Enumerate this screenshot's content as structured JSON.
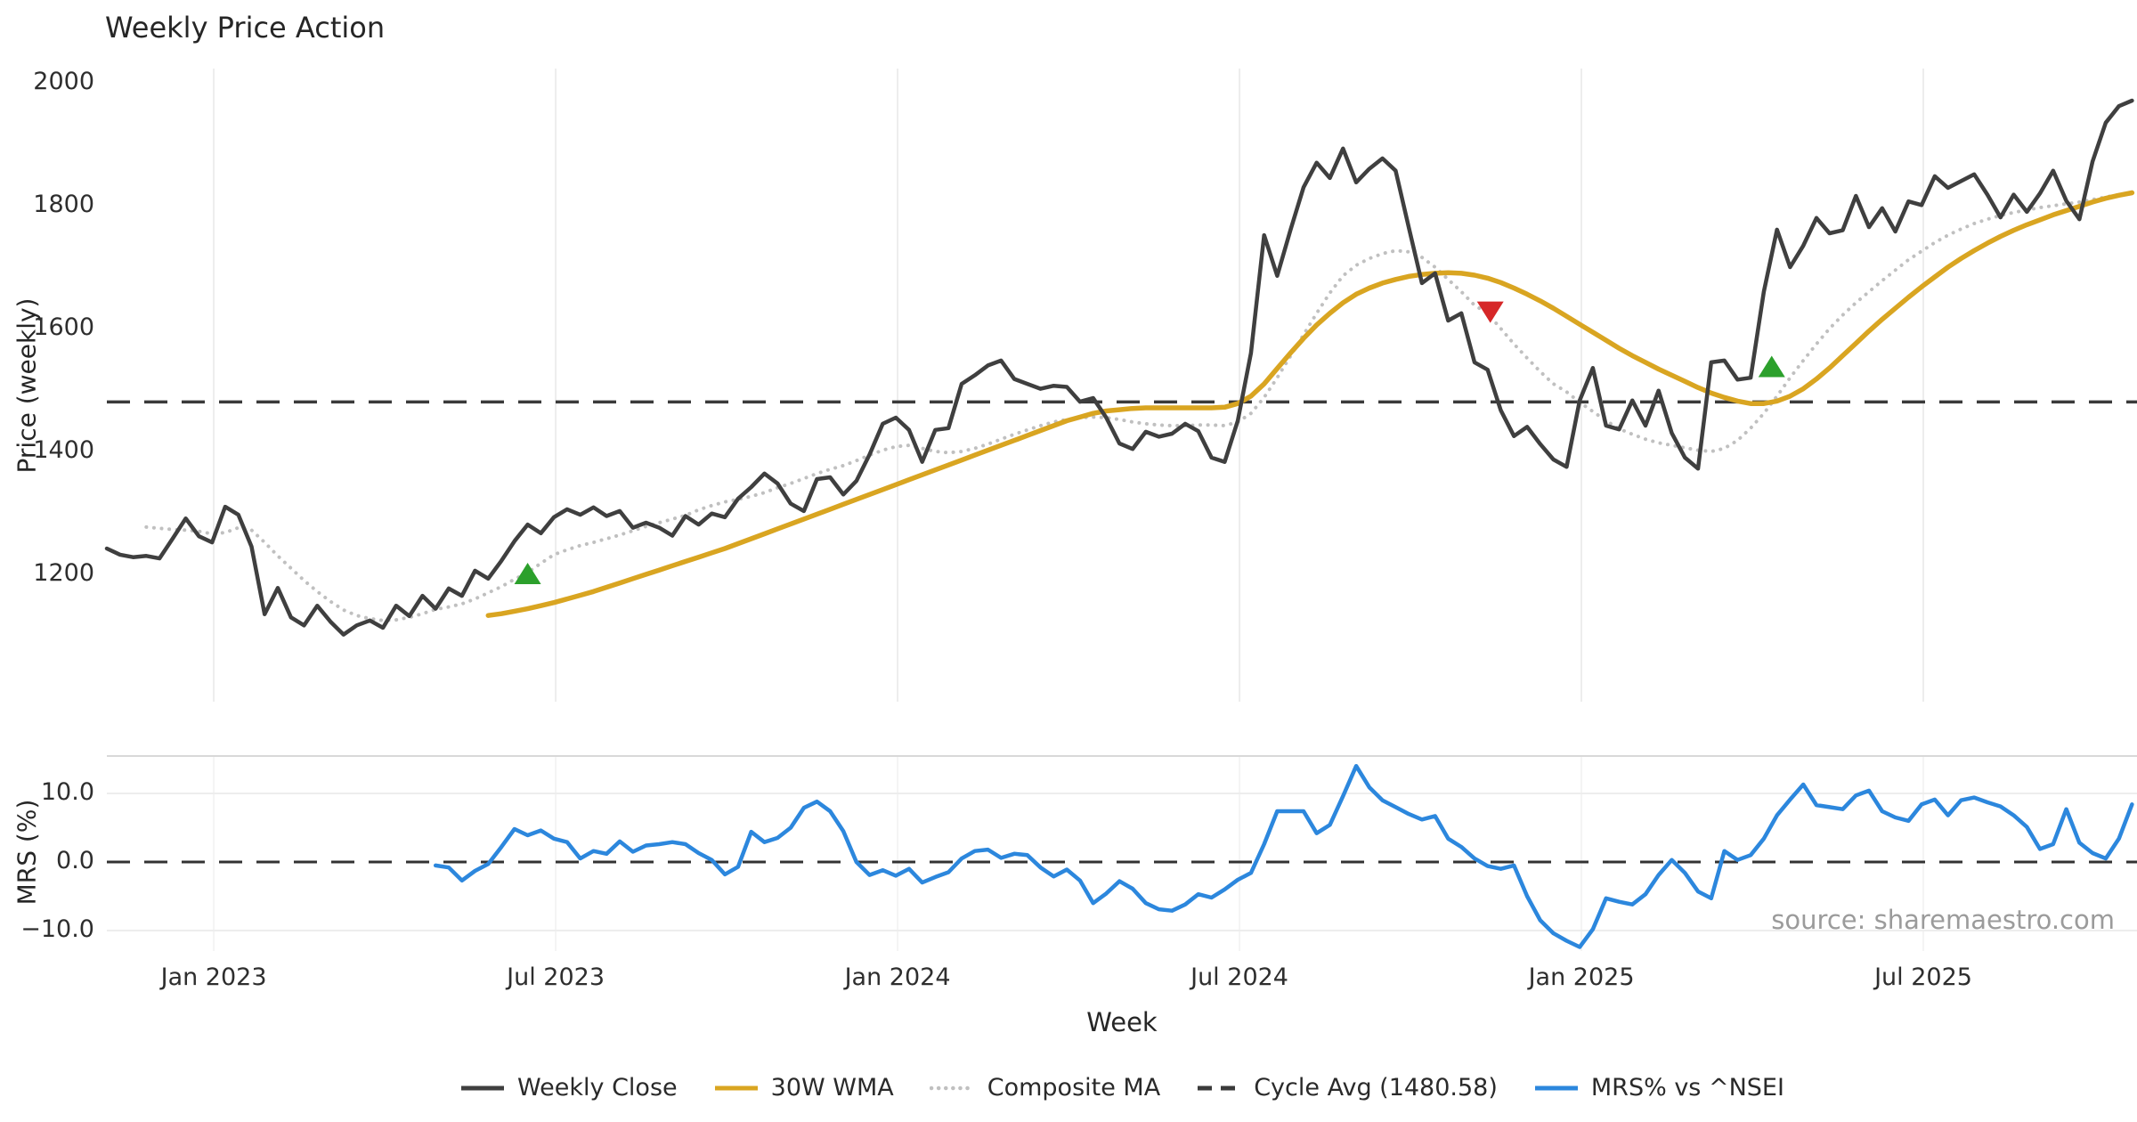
{
  "title": "Weekly Price Action",
  "source": "source: sharemaestro.com",
  "colors": {
    "weekly_close": "#3f3f3f",
    "wma_30w": "#d9a521",
    "composite_ma": "#c0c0c0",
    "cycle_avg": "#3a3a3a",
    "mrs_line": "#2c87dd",
    "buy_marker": "#2ca02c",
    "sell_marker": "#d62728",
    "gridline": "#ededed",
    "panel_spine": "#d8d8d8",
    "tick_text": "#2e2e2e",
    "source_text": "#9b9b9b"
  },
  "x_axis": {
    "label": "Week",
    "ticks": [
      {
        "label": "Jan 2023",
        "week": 8.13
      },
      {
        "label": "Jul 2023",
        "week": 34.13
      },
      {
        "label": "Jan 2024",
        "week": 60.13
      },
      {
        "label": "Jul 2024",
        "week": 86.13
      },
      {
        "label": "Jan 2025",
        "week": 112.13
      },
      {
        "label": "Jul 2025",
        "week": 138.13
      }
    ]
  },
  "price_panel": {
    "y_axis_label": "Price (weekly)",
    "y_ticks": [
      {
        "label": "2000",
        "value": 2000
      },
      {
        "label": "1800",
        "value": 1800
      },
      {
        "label": "1600",
        "value": 1600
      },
      {
        "label": "1400",
        "value": 1400
      },
      {
        "label": "1200",
        "value": 1200
      }
    ]
  },
  "mrs_panel": {
    "y_axis_label": "MRS (%)",
    "y_ticks": [
      {
        "label": "10.0",
        "value": 10
      },
      {
        "label": "0.0",
        "value": 0
      },
      {
        "label": "−10.0",
        "value": -10
      }
    ]
  },
  "legend": {
    "items": [
      {
        "key": "weekly-close",
        "label": "Weekly Close",
        "color": "#3f3f3f",
        "style": "solid"
      },
      {
        "key": "wma-30w",
        "label": "30W WMA",
        "color": "#d9a521",
        "style": "solid"
      },
      {
        "key": "composite-ma",
        "label": "Composite MA",
        "color": "#c0c0c0",
        "style": "dotted"
      },
      {
        "key": "cycle-avg",
        "label": "Cycle Avg (1480.58)",
        "color": "#3a3a3a",
        "style": "dashed"
      },
      {
        "key": "mrs-nsei",
        "label": "MRS% vs ^NSEI",
        "color": "#2c87dd",
        "style": "solid"
      }
    ]
  },
  "chart_data": [
    {
      "type": "line",
      "panel": "price",
      "title": "Weekly Price Action",
      "xlabel": "Week",
      "ylabel": "Price (weekly)",
      "ylim": [
        990,
        2025
      ],
      "x_range_weeks": [
        0,
        154
      ],
      "x_span_dates": [
        "Nov 2022",
        "Oct 2025"
      ],
      "grid": "vertical-only",
      "cycle_avg": 1480.58,
      "series": [
        {
          "name": "Weekly Close",
          "start_week": 0,
          "style": "solid",
          "color": "#3f3f3f",
          "values": [
            1242,
            1232,
            1228,
            1230,
            1226,
            1258,
            1291,
            1262,
            1252,
            1310,
            1297,
            1245,
            1135,
            1178,
            1130,
            1117,
            1149,
            1123,
            1102,
            1117,
            1125,
            1113,
            1149,
            1132,
            1165,
            1144,
            1177,
            1165,
            1206,
            1193,
            1222,
            1254,
            1281,
            1267,
            1293,
            1306,
            1297,
            1309,
            1295,
            1303,
            1276,
            1284,
            1276,
            1263,
            1295,
            1281,
            1299,
            1293,
            1323,
            1342,
            1364,
            1348,
            1315,
            1303,
            1355,
            1358,
            1330,
            1352,
            1395,
            1445,
            1455,
            1435,
            1383,
            1435,
            1438,
            1510,
            1524,
            1540,
            1548,
            1518,
            1510,
            1502,
            1507,
            1505,
            1481,
            1487,
            1455,
            1413,
            1404,
            1432,
            1424,
            1429,
            1445,
            1433,
            1390,
            1383,
            1450,
            1560,
            1752,
            1686,
            1760,
            1830,
            1870,
            1845,
            1893,
            1838,
            1860,
            1877,
            1857,
            1765,
            1674,
            1690,
            1613,
            1625,
            1545,
            1533,
            1467,
            1425,
            1440,
            1412,
            1387,
            1375,
            1483,
            1536,
            1442,
            1436,
            1483,
            1442,
            1499,
            1430,
            1390,
            1372,
            1545,
            1548,
            1517,
            1520,
            1660,
            1761,
            1700,
            1735,
            1780,
            1755,
            1760,
            1816,
            1765,
            1796,
            1758,
            1807,
            1801,
            1848,
            1829,
            1840,
            1851,
            1818,
            1781,
            1818,
            1790,
            1820,
            1857,
            1808,
            1778,
            1872,
            1935,
            1962,
            1971
          ]
        },
        {
          "name": "30W WMA",
          "start_week": 29,
          "style": "solid",
          "color": "#d9a521",
          "values": [
            1133,
            1136,
            1140,
            1144,
            1149,
            1154,
            1160,
            1166,
            1172,
            1179,
            1186,
            1193,
            1200,
            1207,
            1214,
            1221,
            1228,
            1235,
            1242,
            1250,
            1258,
            1266,
            1274,
            1282,
            1290,
            1298,
            1306,
            1314,
            1322,
            1330,
            1338,
            1346,
            1354,
            1362,
            1370,
            1378,
            1386,
            1394,
            1402,
            1410,
            1418,
            1426,
            1434,
            1442,
            1450,
            1456,
            1462,
            1466,
            1468,
            1470,
            1471,
            1471,
            1471,
            1471,
            1471,
            1471,
            1472,
            1478,
            1490,
            1510,
            1535,
            1560,
            1584,
            1606,
            1625,
            1642,
            1656,
            1666,
            1674,
            1680,
            1685,
            1688,
            1690,
            1691,
            1690,
            1687,
            1682,
            1675,
            1666,
            1656,
            1645,
            1633,
            1620,
            1607,
            1594,
            1581,
            1568,
            1556,
            1545,
            1534,
            1524,
            1514,
            1504,
            1495,
            1488,
            1482,
            1478,
            1478,
            1482,
            1490,
            1502,
            1518,
            1536,
            1556,
            1576,
            1596,
            1615,
            1633,
            1651,
            1668,
            1684,
            1700,
            1714,
            1727,
            1739,
            1750,
            1760,
            1769,
            1777,
            1785,
            1792,
            1799,
            1806,
            1812,
            1817,
            1821
          ]
        },
        {
          "name": "Composite MA",
          "start_week": 3,
          "style": "dotted",
          "color": "#c0c0c0",
          "values": [
            1277,
            1275,
            1273,
            1272,
            1270,
            1266,
            1268,
            1276,
            1272,
            1252,
            1230,
            1210,
            1190,
            1172,
            1156,
            1142,
            1133,
            1128,
            1125,
            1126,
            1130,
            1136,
            1143,
            1147,
            1152,
            1160,
            1170,
            1180,
            1192,
            1203,
            1218,
            1232,
            1240,
            1247,
            1252,
            1258,
            1264,
            1271,
            1278,
            1284,
            1290,
            1296,
            1305,
            1312,
            1318,
            1322,
            1327,
            1333,
            1341,
            1348,
            1356,
            1364,
            1371,
            1377,
            1385,
            1394,
            1402,
            1408,
            1410,
            1405,
            1400,
            1398,
            1400,
            1405,
            1412,
            1420,
            1428,
            1435,
            1442,
            1448,
            1452,
            1455,
            1456,
            1455,
            1452,
            1448,
            1445,
            1443,
            1442,
            1442,
            1443,
            1443,
            1442,
            1448,
            1462,
            1488,
            1520,
            1555,
            1590,
            1625,
            1658,
            1686,
            1703,
            1714,
            1722,
            1727,
            1725,
            1716,
            1700,
            1680,
            1660,
            1638,
            1625,
            1600,
            1575,
            1552,
            1530,
            1510,
            1497,
            1480,
            1465,
            1450,
            1437,
            1428,
            1420,
            1414,
            1410,
            1406,
            1402,
            1400,
            1405,
            1418,
            1438,
            1462,
            1490,
            1520,
            1548,
            1575,
            1600,
            1622,
            1642,
            1660,
            1678,
            1695,
            1712,
            1726,
            1740,
            1752,
            1762,
            1771,
            1778,
            1784,
            1789,
            1793,
            1797,
            1800,
            1803,
            1806,
            1810,
            1814,
            1818,
            1822
          ]
        }
      ],
      "markers": [
        {
          "kind": "buy",
          "week": 32,
          "price": 1200
        },
        {
          "kind": "sell",
          "week": 105.2,
          "price": 1628
        },
        {
          "kind": "buy",
          "week": 126.6,
          "price": 1537
        }
      ]
    },
    {
      "type": "line",
      "panel": "mrs",
      "ylabel": "MRS (%)",
      "ylim": [
        -13,
        15.5
      ],
      "zero_line_dashed": true,
      "series": [
        {
          "name": "MRS% vs ^NSEI",
          "start_week": 25,
          "style": "solid",
          "color": "#2c87dd",
          "values": [
            -0.5,
            -0.8,
            -2.7,
            -1.3,
            -0.3,
            2.2,
            4.8,
            3.9,
            4.6,
            3.4,
            2.9,
            0.5,
            1.6,
            1.2,
            3.0,
            1.5,
            2.4,
            2.6,
            2.9,
            2.6,
            1.3,
            0.3,
            -1.8,
            -0.7,
            4.4,
            2.9,
            3.5,
            5.0,
            7.9,
            8.8,
            7.4,
            4.5,
            0.0,
            -1.9,
            -1.2,
            -2.0,
            -1.0,
            -3.0,
            -2.2,
            -1.5,
            0.5,
            1.6,
            1.8,
            0.6,
            1.2,
            1.0,
            -0.8,
            -2.1,
            -1.1,
            -2.7,
            -6.0,
            -4.6,
            -2.8,
            -3.9,
            -6.0,
            -6.9,
            -7.1,
            -6.2,
            -4.7,
            -5.2,
            -4.0,
            -2.6,
            -1.6,
            2.6,
            7.4,
            7.4,
            7.4,
            4.2,
            5.4,
            9.6,
            14.0,
            10.9,
            9.0,
            8.0,
            7.0,
            6.2,
            6.7,
            3.4,
            2.2,
            0.5,
            -0.6,
            -1.0,
            -0.5,
            -5.0,
            -8.5,
            -10.4,
            -11.5,
            -12.4,
            -9.8,
            -5.3,
            -5.8,
            -6.2,
            -4.7,
            -1.9,
            0.3,
            -1.6,
            -4.3,
            -5.3,
            1.6,
            0.3,
            1.0,
            3.4,
            6.8,
            9.1,
            11.3,
            8.3,
            8.0,
            7.7,
            9.7,
            10.4,
            7.4,
            6.5,
            6.0,
            8.4,
            9.1,
            6.8,
            9.0,
            9.4,
            8.7,
            8.1,
            6.8,
            5.1,
            1.9,
            2.6,
            7.7,
            2.8,
            1.3,
            0.5,
            3.4,
            8.4
          ]
        }
      ]
    }
  ]
}
